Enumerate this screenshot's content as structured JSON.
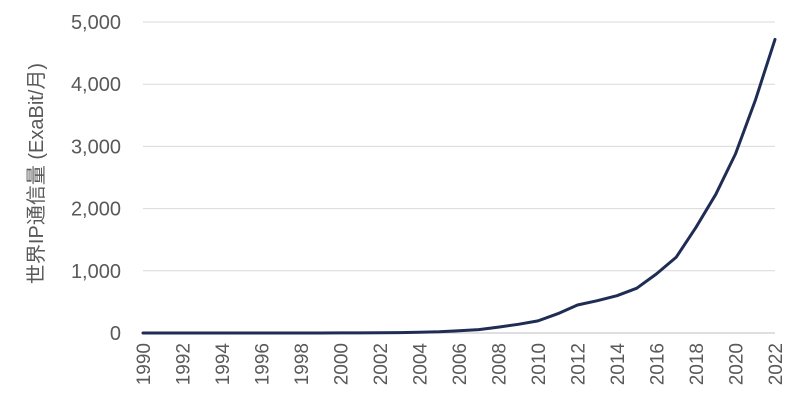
{
  "chart_data": {
    "type": "line",
    "title": "",
    "xlabel": "",
    "ylabel": "世界IP通信量 (ExaBit/月)",
    "x": [
      1990,
      1991,
      1992,
      1993,
      1994,
      1995,
      1996,
      1997,
      1998,
      1999,
      2000,
      2001,
      2002,
      2003,
      2004,
      2005,
      2006,
      2007,
      2008,
      2009,
      2010,
      2011,
      2012,
      2013,
      2014,
      2015,
      2016,
      2017,
      2018,
      2019,
      2020,
      2021,
      2022
    ],
    "series": [
      {
        "values": [
          0,
          0,
          0,
          0,
          0,
          0,
          0,
          0,
          0,
          0,
          1,
          2,
          4,
          7,
          12,
          20,
          35,
          55,
          95,
          140,
          195,
          310,
          450,
          520,
          600,
          720,
          950,
          1220,
          1700,
          2230,
          2880,
          3740,
          4720
        ]
      }
    ],
    "ylim": [
      0,
      5000
    ],
    "y_ticks": [
      "0",
      "1,000",
      "2,000",
      "3,000",
      "4,000",
      "5,000"
    ],
    "x_ticks": [
      "1990",
      "1992",
      "1994",
      "1996",
      "1998",
      "2000",
      "2002",
      "2004",
      "2006",
      "2008",
      "2010",
      "2012",
      "2014",
      "2016",
      "2018",
      "2020",
      "2022"
    ],
    "grid": true,
    "legend": "none",
    "colors": {
      "line": "#1f2d54",
      "grid": "#d9d9d9",
      "axis": "#bfbfbf",
      "text": "#595959"
    }
  }
}
